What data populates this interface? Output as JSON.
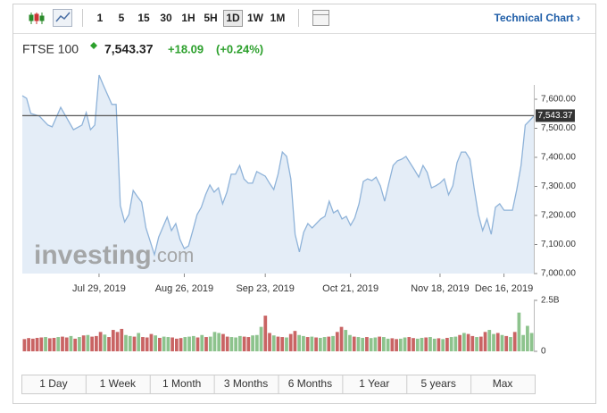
{
  "toolbar": {
    "intervals": [
      "1",
      "5",
      "15",
      "30",
      "1H",
      "5H",
      "1D",
      "1W",
      "1M"
    ],
    "active": "1D",
    "link": "Technical Chart ›"
  },
  "header": {
    "name": "FTSE 100",
    "change": "+18.09",
    "change_percent": "(+0.24%)"
  },
  "watermark": {
    "brand": "investing",
    "suffix": ".com"
  },
  "ranges": [
    "1 Day",
    "1 Week",
    "1 Month",
    "3 Months",
    "6 Months",
    "1 Year",
    "5 years",
    "Max"
  ],
  "chart_data": [
    {
      "type": "line",
      "color": "#8fb3d9",
      "fill": "#e4edf7",
      "x": [
        0,
        1,
        2,
        4,
        6,
        7,
        9,
        12,
        14,
        15,
        16,
        17,
        18,
        19,
        21,
        22,
        23,
        24,
        25,
        26,
        27,
        28,
        29,
        31,
        32,
        34,
        35,
        36,
        37,
        38,
        39,
        40,
        41,
        42,
        43,
        44,
        45,
        46,
        47,
        48,
        49,
        50,
        51,
        52,
        53,
        54,
        55,
        57,
        58,
        59,
        60,
        61,
        62,
        63,
        64,
        65,
        66,
        67,
        68,
        70,
        71,
        72,
        73,
        74,
        75,
        76,
        77,
        78,
        79,
        80,
        81,
        82,
        83,
        84,
        85,
        86,
        87,
        88,
        89,
        90,
        92,
        93,
        94,
        95,
        96,
        97,
        98,
        99,
        100,
        101,
        102,
        103,
        104,
        105,
        106,
        107,
        108,
        109,
        110,
        111,
        112,
        113,
        115,
        116,
        117,
        118,
        119,
        120
      ],
      "values": [
        7612,
        7603,
        7551,
        7542,
        7511,
        7505,
        7572,
        7495,
        7511,
        7554,
        7495,
        7511,
        7683,
        7649,
        7582,
        7582,
        7234,
        7178,
        7203,
        7286,
        7265,
        7246,
        7157,
        7065,
        7126,
        7194,
        7148,
        7172,
        7117,
        7086,
        7095,
        7148,
        7203,
        7228,
        7271,
        7305,
        7280,
        7295,
        7240,
        7280,
        7342,
        7342,
        7372,
        7326,
        7311,
        7311,
        7351,
        7335,
        7311,
        7289,
        7342,
        7418,
        7403,
        7326,
        7135,
        7074,
        7142,
        7172,
        7157,
        7188,
        7197,
        7249,
        7209,
        7218,
        7188,
        7197,
        7166,
        7191,
        7240,
        7317,
        7326,
        7320,
        7332,
        7302,
        7249,
        7311,
        7372,
        7388,
        7394,
        7403,
        7357,
        7332,
        7372,
        7348,
        7295,
        7302,
        7311,
        7326,
        7271,
        7302,
        7382,
        7418,
        7418,
        7394,
        7295,
        7203,
        7148,
        7188,
        7135,
        7228,
        7240,
        7218,
        7218,
        7289,
        7372,
        7511,
        7526,
        7542
      ],
      "price": {
        "value": 7543.37,
        "label": "7,543.37"
      },
      "price_color": "#555555",
      "xlim": [
        0,
        120
      ],
      "xticks": [
        {
          "value": 18,
          "label": "Jul 29, 2019"
        },
        {
          "value": 38,
          "label": "Aug 26, 2019"
        },
        {
          "value": 57,
          "label": "Sep 23, 2019"
        },
        {
          "value": 77,
          "label": "Oct 21, 2019"
        },
        {
          "value": 98,
          "label": "Nov 18, 2019"
        },
        {
          "value": 113,
          "label": "Dec 16, 2019"
        }
      ],
      "ylim": [
        7000,
        7700
      ],
      "yticks": [
        {
          "value": 7000,
          "label": "7,000.00"
        },
        {
          "value": 7100,
          "label": "7,100.00"
        },
        {
          "value": 7200,
          "label": "7,200.00"
        },
        {
          "value": 7300,
          "label": "7,300.00"
        },
        {
          "value": 7400,
          "label": "7,400.00"
        },
        {
          "value": 7500,
          "label": "7,500.00"
        },
        {
          "value": 7600,
          "label": "7,600.00"
        }
      ]
    },
    {
      "type": "bar",
      "values": [
        0.6,
        0.65,
        0.62,
        0.66,
        0.68,
        0.7,
        0.64,
        0.66,
        0.7,
        0.72,
        0.68,
        0.75,
        0.62,
        0.7,
        0.78,
        0.8,
        0.72,
        0.75,
        0.95,
        0.82,
        0.7,
        1.05,
        0.95,
        1.1,
        0.8,
        0.75,
        0.72,
        0.9,
        0.7,
        0.68,
        0.85,
        0.78,
        0.66,
        0.72,
        0.7,
        0.68,
        0.62,
        0.65,
        0.7,
        0.72,
        0.75,
        0.68,
        0.8,
        0.7,
        0.72,
        0.95,
        0.9,
        0.85,
        0.72,
        0.7,
        0.68,
        0.75,
        0.72,
        0.7,
        0.78,
        0.8,
        1.2,
        1.75,
        0.9,
        0.78,
        0.72,
        0.7,
        0.68,
        0.85,
        1.0,
        0.8,
        0.75,
        0.7,
        0.72,
        0.68,
        0.66,
        0.7,
        0.72,
        0.75,
        0.95,
        1.2,
        1.05,
        0.8,
        0.72,
        0.7,
        0.66,
        0.7,
        0.65,
        0.68,
        0.72,
        0.7,
        0.62,
        0.64,
        0.6,
        0.62,
        0.68,
        0.7,
        0.65,
        0.62,
        0.66,
        0.68,
        0.7,
        0.62,
        0.64,
        0.6,
        0.66,
        0.7,
        0.72,
        0.8,
        0.9,
        0.85,
        0.75,
        0.7,
        0.72,
        0.95,
        1.05,
        0.85,
        0.9,
        0.8,
        0.75,
        0.7,
        0.95,
        1.9,
        0.8,
        1.25,
        0.9
      ],
      "colors": [
        "#c96464",
        "#c96464",
        "#c96464",
        "#c96464",
        "#c96464",
        "#8dc38d",
        "#c96464",
        "#c96464",
        "#8dc38d",
        "#c96464",
        "#c96464",
        "#8dc38d",
        "#c96464",
        "#8dc38d",
        "#c96464",
        "#8dc38d",
        "#c96464",
        "#c96464",
        "#c96464",
        "#8dc38d",
        "#c96464",
        "#c96464",
        "#c96464",
        "#c96464",
        "#8dc38d",
        "#8dc38d",
        "#c96464",
        "#8dc38d",
        "#c96464",
        "#c96464",
        "#c96464",
        "#8dc38d",
        "#c96464",
        "#8dc38d",
        "#8dc38d",
        "#c96464",
        "#c96464",
        "#c96464",
        "#8dc38d",
        "#8dc38d",
        "#8dc38d",
        "#c96464",
        "#8dc38d",
        "#c96464",
        "#8dc38d",
        "#8dc38d",
        "#8dc38d",
        "#c96464",
        "#c96464",
        "#8dc38d",
        "#8dc38d",
        "#8dc38d",
        "#c96464",
        "#c96464",
        "#8dc38d",
        "#8dc38d",
        "#8dc38d",
        "#c96464",
        "#c96464",
        "#8dc38d",
        "#c96464",
        "#c96464",
        "#8dc38d",
        "#c96464",
        "#c96464",
        "#8dc38d",
        "#8dc38d",
        "#c96464",
        "#8dc38d",
        "#c96464",
        "#8dc38d",
        "#8dc38d",
        "#c96464",
        "#8dc38d",
        "#c96464",
        "#c96464",
        "#8dc38d",
        "#8dc38d",
        "#c96464",
        "#8dc38d",
        "#8dc38d",
        "#c96464",
        "#8dc38d",
        "#8dc38d",
        "#c96464",
        "#8dc38d",
        "#8dc38d",
        "#c96464",
        "#c96464",
        "#8dc38d",
        "#8dc38d",
        "#c96464",
        "#c96464",
        "#8dc38d",
        "#8dc38d",
        "#c96464",
        "#8dc38d",
        "#8dc38d",
        "#c96464",
        "#8dc38d",
        "#c96464",
        "#8dc38d",
        "#8dc38d",
        "#c96464",
        "#8dc38d",
        "#c96464",
        "#c96464",
        "#8dc38d",
        "#c96464",
        "#c96464",
        "#8dc38d",
        "#8dc38d",
        "#c96464",
        "#8dc38d",
        "#c96464",
        "#8dc38d",
        "#c96464",
        "#8dc38d",
        "#8dc38d",
        "#8dc38d",
        "#8dc38d"
      ],
      "ylim": [
        0,
        2.5
      ],
      "yticks": [
        0,
        {
          "value": 2.5,
          "label": "2.5B"
        }
      ]
    }
  ]
}
